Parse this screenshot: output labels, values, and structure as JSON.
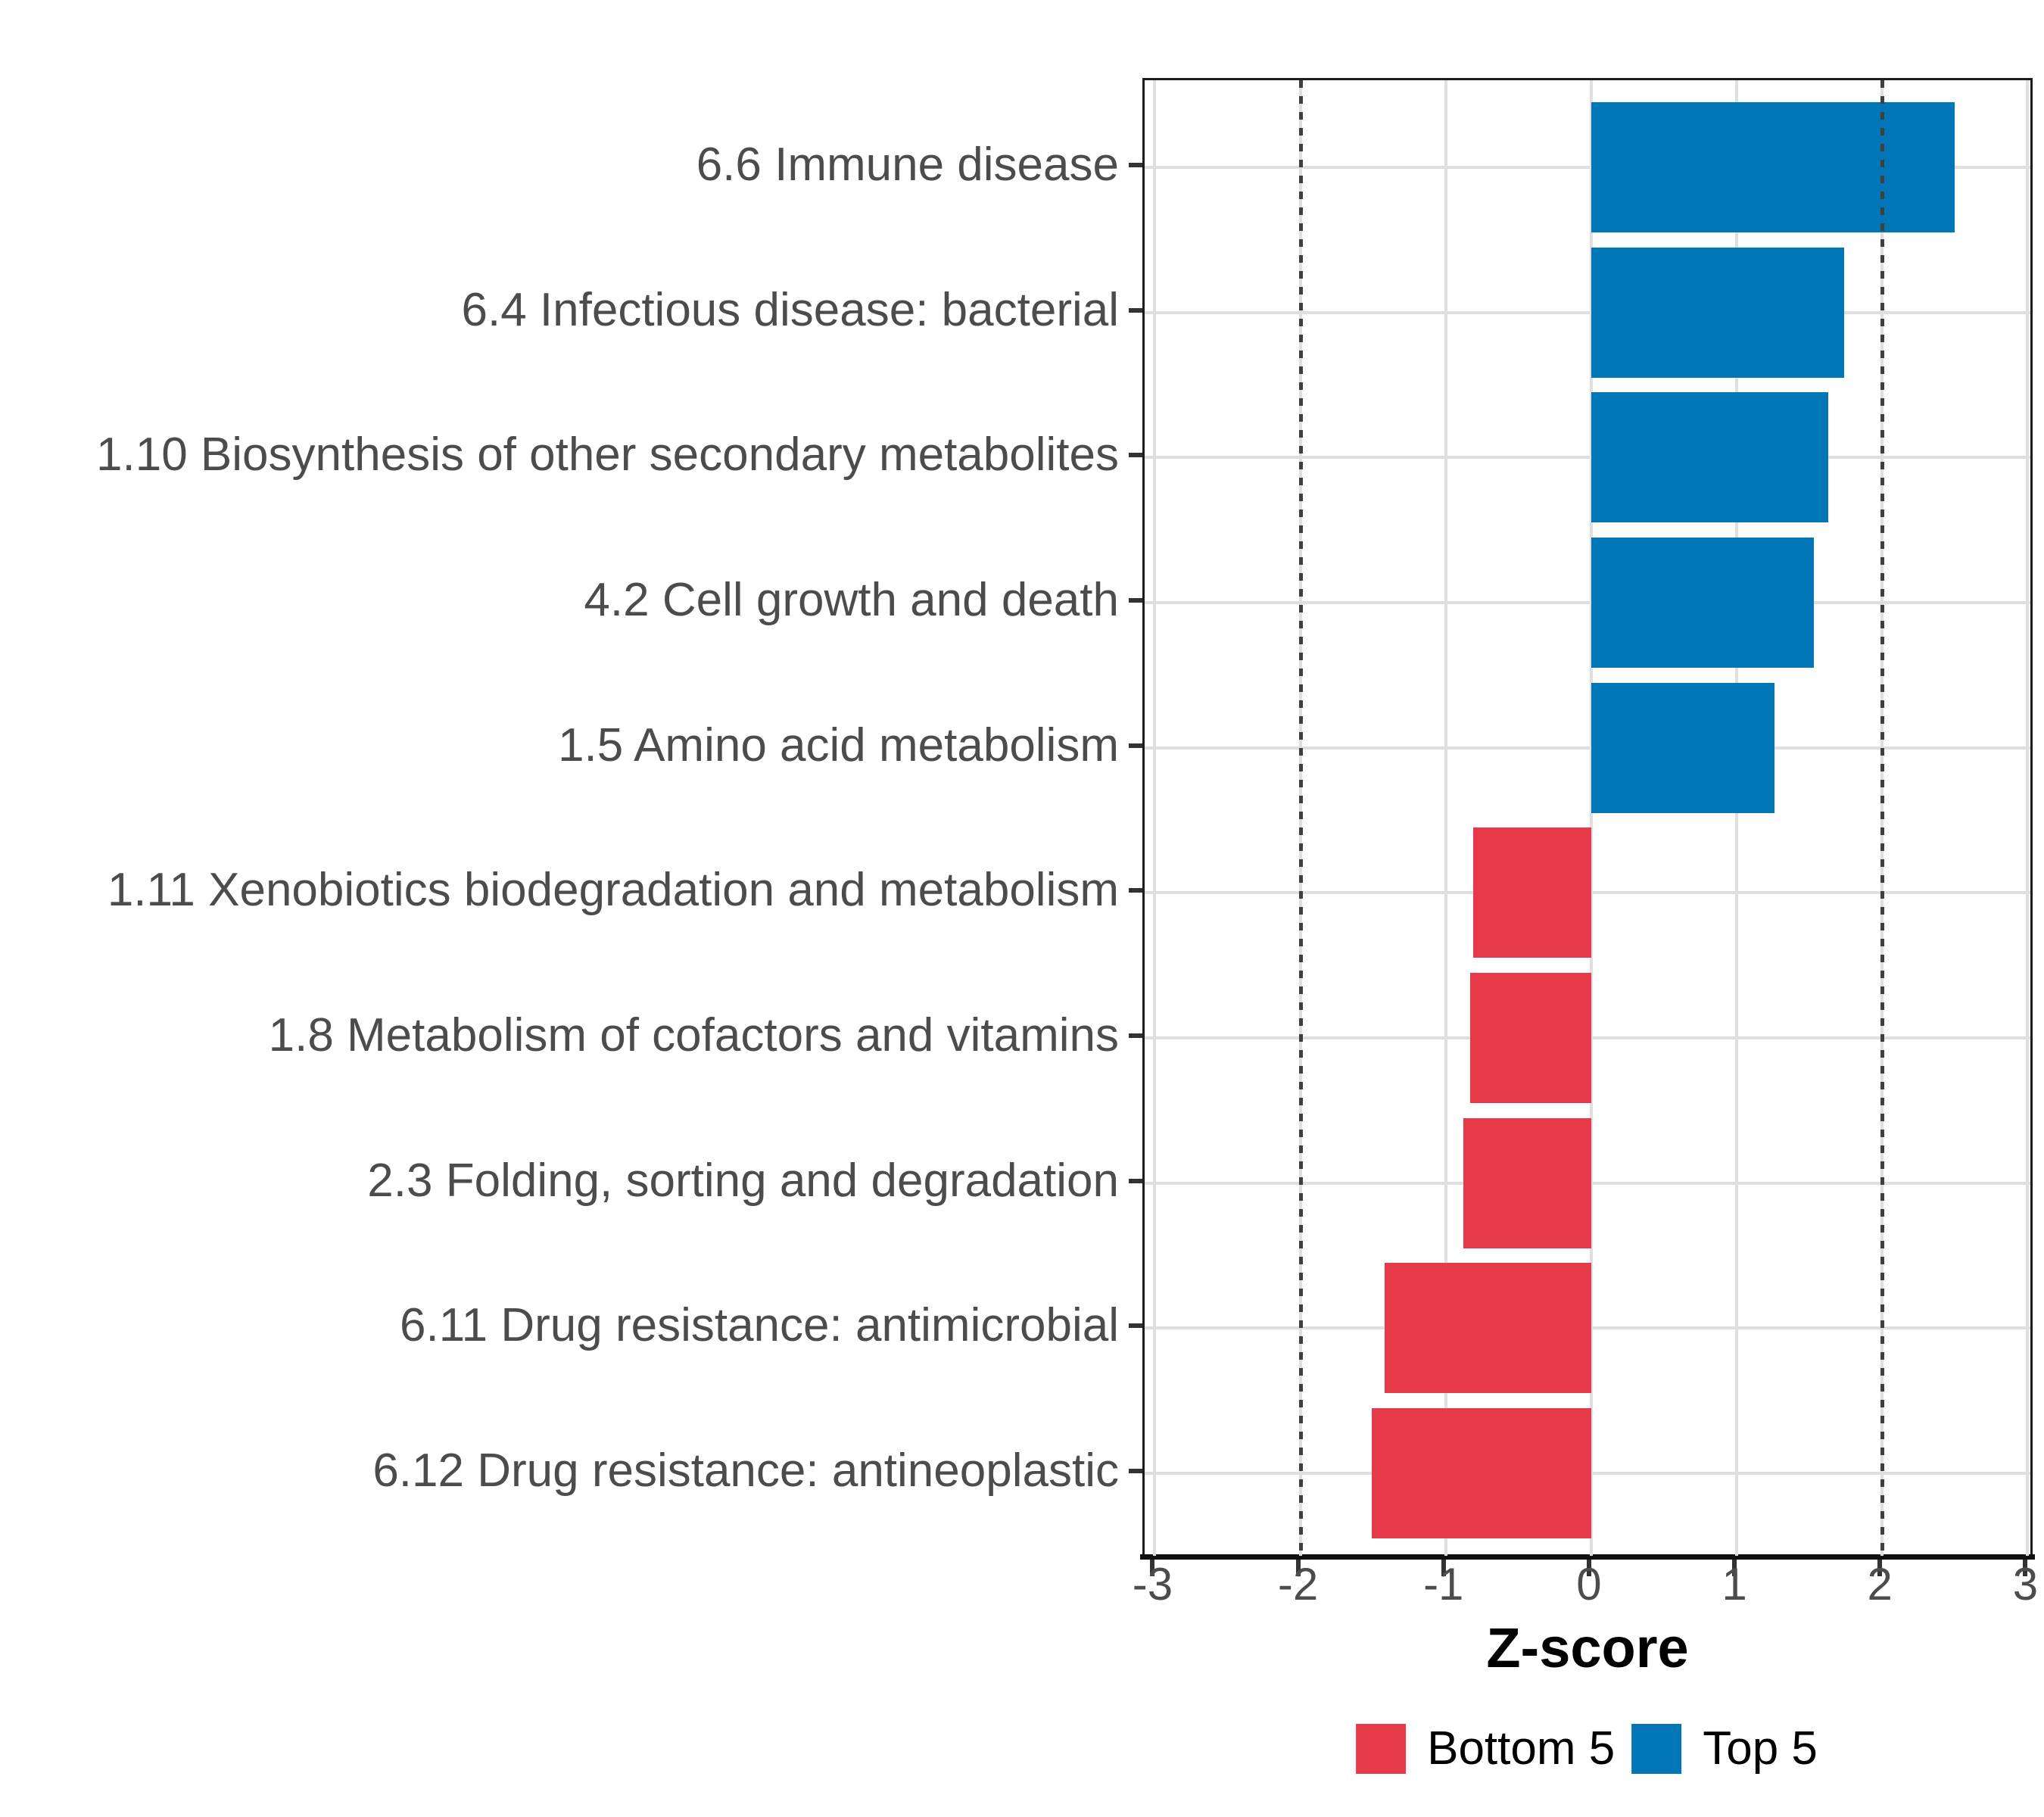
{
  "chart_data": {
    "type": "bar",
    "orientation": "horizontal",
    "title": "",
    "xlabel": "Z-score",
    "ylabel": "",
    "xlim": [
      -3.07,
      3.05
    ],
    "x_ticks": [
      -3,
      -2,
      -1,
      0,
      1,
      2,
      3
    ],
    "reference_lines": [
      -2,
      2
    ],
    "grid": "major",
    "legend_position": "bottom",
    "categories": [
      "6.6 Immune disease",
      "6.4 Infectious disease: bacterial",
      "1.10 Biosynthesis of other secondary metabolites",
      "4.2 Cell growth and death",
      "1.5 Amino acid metabolism",
      "1.11 Xenobiotics biodegradation and metabolism",
      "1.8 Metabolism of cofactors and vitamins",
      "2.3 Folding, sorting and degradation",
      "6.11 Drug resistance: antimicrobial",
      "6.12 Drug resistance: antineoplastic"
    ],
    "values": [
      2.5,
      1.74,
      1.63,
      1.53,
      1.26,
      -0.81,
      -0.83,
      -0.88,
      -1.42,
      -1.51
    ],
    "groups": [
      "Top 5",
      "Top 5",
      "Top 5",
      "Top 5",
      "Top 5",
      "Bottom 5",
      "Bottom 5",
      "Bottom 5",
      "Bottom 5",
      "Bottom 5"
    ],
    "legend": [
      {
        "label": "Bottom 5",
        "color": "#E6394A"
      },
      {
        "label": "Top 5",
        "color": "#0076B6"
      }
    ]
  },
  "colors": {
    "bar_top": "#0076B6",
    "bar_bottom": "#E6394A",
    "gridline": "#DFDFDF",
    "reference_line": "#3F3F3F",
    "axis_text": "#4C4C4C",
    "panel_border": "#1C1C1C",
    "title_text": "#000000"
  }
}
